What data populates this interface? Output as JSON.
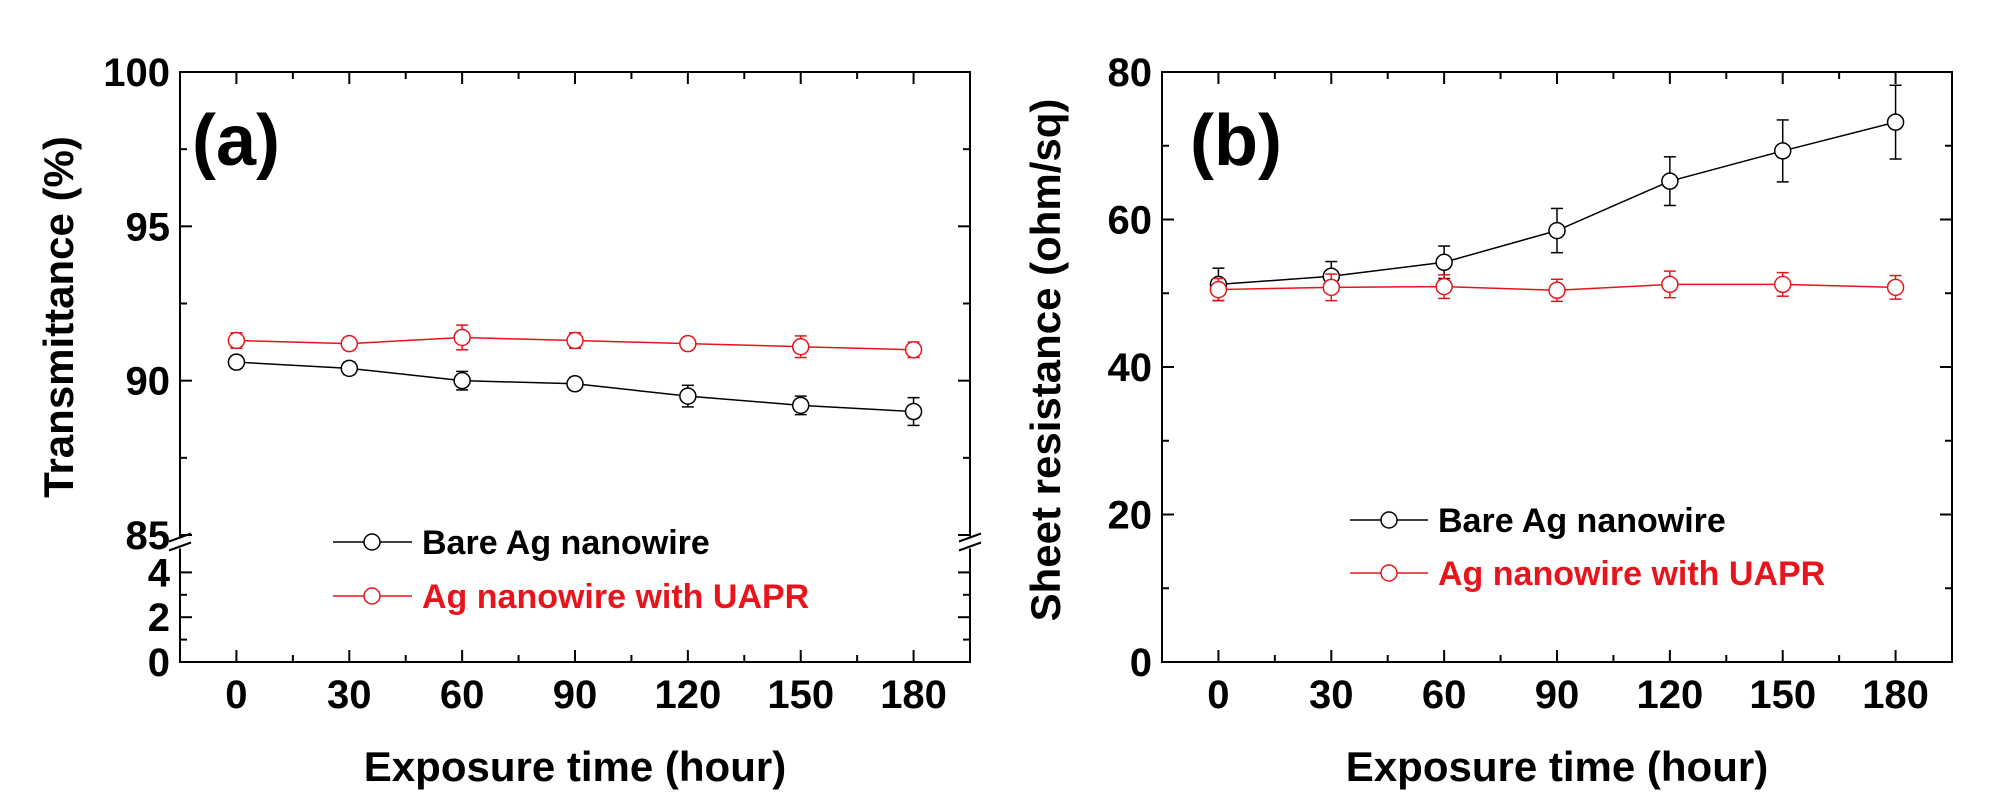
{
  "chart_data": [
    {
      "type": "line",
      "panel_label": "(a)",
      "xlabel": "Exposure time (hour)",
      "ylabel": "Transmittance (%)",
      "x": [
        0,
        30,
        60,
        90,
        120,
        150,
        180
      ],
      "xlim": [
        -15,
        195
      ],
      "x_ticks": [
        "0",
        "30",
        "60",
        "90",
        "120",
        "150",
        "180"
      ],
      "y_axis_break": true,
      "ylim_upper": [
        85,
        100
      ],
      "y_ticks_upper": [
        "85",
        "90",
        "95",
        "100"
      ],
      "ylim_lower": [
        0,
        5
      ],
      "y_ticks_lower": [
        "0",
        "2",
        "4"
      ],
      "legend": {
        "position": "lower-center",
        "entries": [
          "Bare Ag nanowire",
          "Ag nanowire with UAPR"
        ]
      },
      "series": [
        {
          "name": "Bare Ag nanowire",
          "color": "#000000",
          "values": [
            90.6,
            90.4,
            90.0,
            89.9,
            89.5,
            89.2,
            89.0
          ],
          "errors": [
            0.2,
            0.2,
            0.3,
            0.2,
            0.35,
            0.3,
            0.45
          ]
        },
        {
          "name": "Ag nanowire with UAPR",
          "color": "#e8141c",
          "values": [
            91.3,
            91.2,
            91.4,
            91.3,
            91.2,
            91.1,
            91.0
          ],
          "errors": [
            0.25,
            0.2,
            0.4,
            0.25,
            0.2,
            0.35,
            0.25
          ]
        }
      ]
    },
    {
      "type": "line",
      "panel_label": "(b)",
      "xlabel": "Exposure time (hour)",
      "ylabel": "Sheet resistance (ohm/sq)",
      "x": [
        0,
        30,
        60,
        90,
        120,
        150,
        180
      ],
      "xlim": [
        -15,
        195
      ],
      "x_ticks": [
        "0",
        "30",
        "60",
        "90",
        "120",
        "150",
        "180"
      ],
      "ylim": [
        0,
        80
      ],
      "y_ticks": [
        "0",
        "20",
        "40",
        "60",
        "80"
      ],
      "legend": {
        "position": "lower-center",
        "entries": [
          "Bare Ag nanowire",
          "Ag nanowire with UAPR"
        ]
      },
      "series": [
        {
          "name": "Bare Ag nanowire",
          "color": "#000000",
          "values": [
            51.2,
            52.3,
            54.2,
            58.5,
            65.2,
            69.3,
            73.2
          ],
          "errors": [
            2.2,
            2.0,
            2.2,
            3.0,
            3.3,
            4.2,
            5.0
          ]
        },
        {
          "name": "Ag nanowire with UAPR",
          "color": "#e8141c",
          "values": [
            50.5,
            50.8,
            50.9,
            50.4,
            51.2,
            51.2,
            50.8
          ],
          "errors": [
            1.5,
            1.8,
            1.6,
            1.5,
            1.8,
            1.6,
            1.6
          ]
        }
      ]
    }
  ]
}
